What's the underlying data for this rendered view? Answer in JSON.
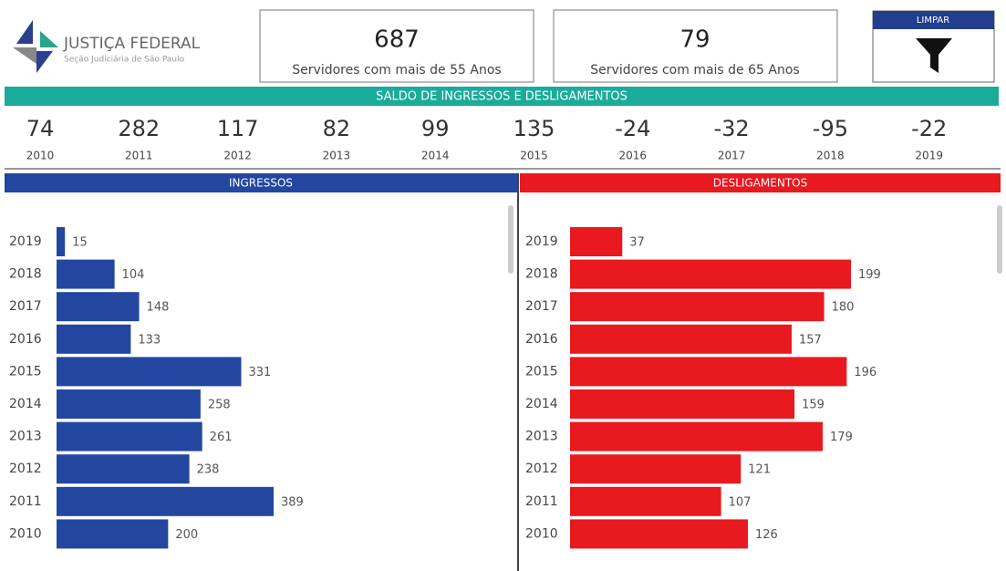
{
  "header": {
    "org": "JUSTIÇA FEDERAL",
    "suborg": "Seção Judiciária de São Paulo"
  },
  "cards": [
    {
      "value": 687,
      "label": "Servidores com mais de 55 Anos"
    },
    {
      "value": 79,
      "label": "Servidores com mais de 65 Anos"
    }
  ],
  "button": {
    "label": "LIMPAR"
  },
  "saldo": {
    "title": "SALDO DE INGRESSOS E DESLIGAMENTOS",
    "years": [
      "2010",
      "2011",
      "2012",
      "2013",
      "2014",
      "2015",
      "2016",
      "2017",
      "2018",
      "2019"
    ],
    "values": [
      74,
      282,
      117,
      82,
      99,
      135,
      -24,
      -32,
      -95,
      -22
    ]
  },
  "chart_data": [
    {
      "type": "bar",
      "title": "INGRESSOS",
      "color": "#2347a0",
      "categories": [
        "2019",
        "2018",
        "2017",
        "2016",
        "2015",
        "2014",
        "2013",
        "2012",
        "2011",
        "2010"
      ],
      "values": [
        15,
        104,
        148,
        133,
        331,
        258,
        261,
        238,
        389,
        200
      ]
    },
    {
      "type": "bar",
      "title": "DESLIGAMENTOS",
      "color": "#e8191f",
      "categories": [
        "2019",
        "2018",
        "2017",
        "2016",
        "2015",
        "2014",
        "2013",
        "2012",
        "2011",
        "2010"
      ],
      "values": [
        37,
        199,
        180,
        157,
        196,
        159,
        179,
        121,
        107,
        126
      ]
    }
  ]
}
